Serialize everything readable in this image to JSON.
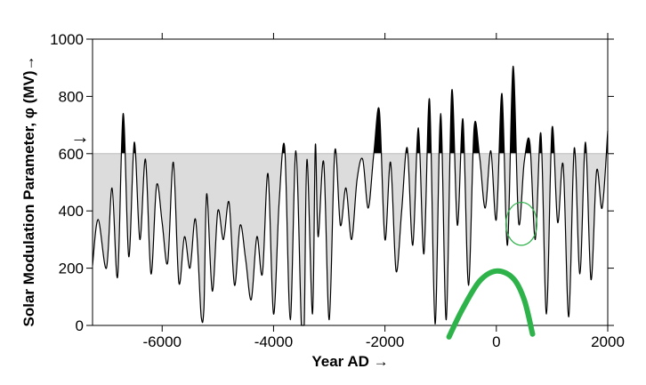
{
  "chart_data": {
    "type": "area",
    "title": "",
    "xlabel": "Year AD →",
    "ylabel": "Solar Modulation Parameter, φ (MV)→",
    "xlim": [
      -7250,
      2000
    ],
    "ylim": [
      0,
      1000
    ],
    "x_ticks": [
      -6000,
      -4000,
      -2000,
      0,
      2000
    ],
    "y_ticks": [
      0,
      200,
      400,
      600,
      800,
      1000
    ],
    "x_tick_labels": [
      "-6000",
      "-4000",
      "-2000",
      "0",
      "2000"
    ],
    "y_tick_labels": [
      "0",
      "200",
      "400",
      "600",
      "800",
      "1000"
    ],
    "threshold": 600,
    "threshold_marker": "→",
    "grid": false,
    "colors": {
      "fill_below_threshold": "#dcdcdc",
      "fill_above_threshold": "#000000",
      "line": "#000000",
      "annotation": "#2db34a"
    },
    "annotations": [
      {
        "shape": "ellipse",
        "x": 450,
        "y": 355,
        "rx": 280,
        "ry": 75
      },
      {
        "shape": "arc",
        "points": [
          [
            -850,
            -40
          ],
          [
            -600,
            60
          ],
          [
            -300,
            155
          ],
          [
            0,
            190
          ],
          [
            300,
            165
          ],
          [
            500,
            90
          ],
          [
            650,
            -30
          ]
        ]
      }
    ],
    "series": [
      {
        "x": [
          -7250,
          -7150,
          -7000,
          -6900,
          -6800,
          -6700,
          -6600,
          -6500,
          -6400,
          -6300,
          -6200,
          -6100,
          -6000,
          -5900,
          -5800,
          -5700,
          -5600,
          -5500,
          -5400,
          -5300,
          -5250,
          -5200,
          -5100,
          -5000,
          -4900,
          -4800,
          -4700,
          -4600,
          -4500,
          -4400,
          -4300,
          -4200,
          -4100,
          -4000,
          -3900,
          -3800,
          -3700,
          -3600,
          -3500,
          -3450,
          -3400,
          -3300,
          -3250,
          -3200,
          -3100,
          -3000,
          -2900,
          -2800,
          -2700,
          -2600,
          -2500,
          -2400,
          -2300,
          -2200,
          -2100,
          -2000,
          -1900,
          -1800,
          -1700,
          -1600,
          -1500,
          -1400,
          -1300,
          -1200,
          -1100,
          -1000,
          -900,
          -800,
          -700,
          -600,
          -500,
          -400,
          -300,
          -200,
          -100,
          0,
          100,
          200,
          300,
          400,
          500,
          600,
          700,
          800,
          900,
          1000,
          1100,
          1200,
          1300,
          1400,
          1500,
          1600,
          1700,
          1800,
          1900,
          2000
        ],
        "y": [
          210,
          370,
          200,
          480,
          170,
          740,
          240,
          640,
          300,
          580,
          180,
          490,
          360,
          220,
          570,
          150,
          310,
          200,
          370,
          30,
          60,
          460,
          120,
          400,
          300,
          430,
          140,
          350,
          230,
          90,
          310,
          180,
          530,
          40,
          430,
          620,
          20,
          610,
          0,
          0,
          580,
          40,
          630,
          310,
          570,
          20,
          610,
          350,
          480,
          300,
          510,
          580,
          410,
          600,
          750,
          300,
          570,
          190,
          400,
          620,
          280,
          690,
          250,
          790,
          5,
          740,
          20,
          820,
          350,
          720,
          140,
          690,
          590,
          410,
          610,
          370,
          810,
          280,
          905,
          360,
          570,
          640,
          300,
          670,
          40,
          690,
          360,
          560,
          30,
          620,
          180,
          640,
          160,
          540,
          410,
          680
        ]
      }
    ]
  }
}
